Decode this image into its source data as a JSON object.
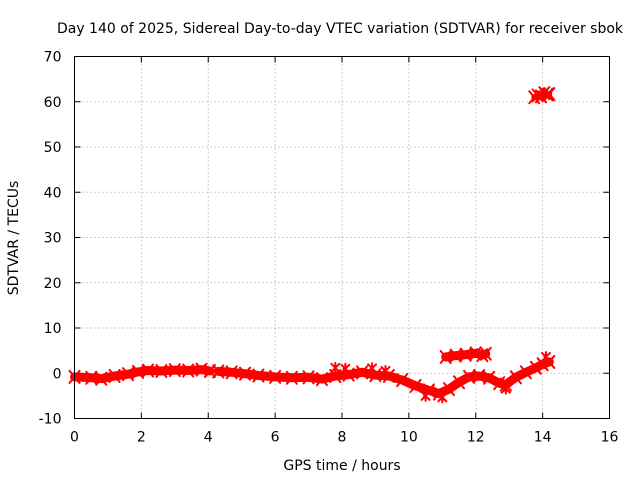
{
  "chart_data": {
    "type": "scatter",
    "title": "Day 140 of 2025, Sidereal Day-to-day VTEC variation (SDTVAR) for receiver sbok",
    "xlabel": "GPS time / hours",
    "ylabel": "SDTVAR / TECUs",
    "xlim": [
      0,
      16
    ],
    "ylim": [
      -10,
      70
    ],
    "xticks": [
      0,
      2,
      4,
      6,
      8,
      10,
      12,
      14,
      16
    ],
    "yticks": [
      -10,
      0,
      10,
      20,
      30,
      40,
      50,
      60,
      70
    ],
    "grid": true,
    "series_color": "#ff0000",
    "series": [
      {
        "name": "main-trace-1",
        "points": [
          [
            0.0,
            -0.8
          ],
          [
            0.5,
            -1.0
          ],
          [
            0.8,
            -1.2
          ],
          [
            1.2,
            -0.6
          ],
          [
            1.6,
            -0.2
          ],
          [
            1.9,
            0.3
          ],
          [
            2.2,
            0.6
          ],
          [
            2.6,
            0.5
          ],
          [
            3.0,
            0.7
          ],
          [
            3.4,
            0.6
          ],
          [
            3.8,
            0.8
          ],
          [
            4.05,
            0.5
          ]
        ]
      },
      {
        "name": "main-trace-2",
        "points": [
          [
            4.3,
            0.4
          ],
          [
            4.7,
            0.2
          ],
          [
            5.1,
            -0.1
          ],
          [
            5.5,
            -0.5
          ],
          [
            6.0,
            -0.8
          ],
          [
            6.5,
            -1.0
          ],
          [
            7.0,
            -0.9
          ],
          [
            7.4,
            -1.3
          ],
          [
            7.8,
            -0.6
          ],
          [
            8.2,
            -0.3
          ],
          [
            8.6,
            0.2
          ],
          [
            9.0,
            -0.4
          ],
          [
            9.4,
            -0.6
          ],
          [
            9.8,
            -1.5
          ],
          [
            10.2,
            -2.8
          ],
          [
            10.6,
            -3.8
          ],
          [
            10.9,
            -4.5
          ],
          [
            11.2,
            -3.5
          ],
          [
            11.5,
            -2.0
          ],
          [
            11.8,
            -0.8
          ],
          [
            12.1,
            -0.6
          ],
          [
            12.4,
            -1.0
          ],
          [
            12.7,
            -2.2
          ],
          [
            12.9,
            -2.5
          ],
          [
            13.2,
            -0.9
          ],
          [
            13.5,
            0.2
          ],
          [
            13.8,
            1.2
          ],
          [
            14.0,
            2.0
          ],
          [
            14.2,
            2.5
          ]
        ]
      },
      {
        "name": "upper-segment-near-4",
        "points": [
          [
            11.1,
            3.6
          ],
          [
            11.4,
            3.9
          ],
          [
            11.7,
            4.1
          ],
          [
            12.0,
            4.4
          ],
          [
            12.2,
            4.0
          ],
          [
            12.3,
            4.3
          ]
        ]
      },
      {
        "name": "outlier-near-61",
        "points": [
          [
            13.75,
            61.0
          ],
          [
            13.85,
            61.4
          ],
          [
            13.95,
            61.2
          ],
          [
            14.05,
            61.9
          ],
          [
            14.15,
            61.6
          ],
          [
            14.2,
            61.7
          ]
        ]
      },
      {
        "name": "spikes",
        "points": [
          [
            7.8,
            1.2
          ],
          [
            8.1,
            1.0
          ],
          [
            8.9,
            1.1
          ],
          [
            9.3,
            0.5
          ],
          [
            10.5,
            -5.0
          ],
          [
            11.0,
            -5.3
          ],
          [
            12.9,
            -3.4
          ],
          [
            14.1,
            3.6
          ]
        ]
      }
    ]
  }
}
